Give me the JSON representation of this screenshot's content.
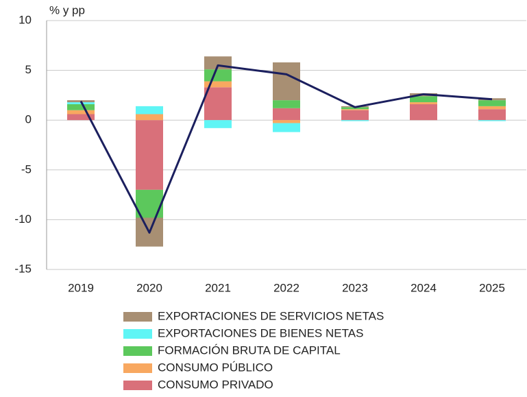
{
  "chart_data": {
    "type": "stacked_bar_line",
    "y_label": "% y pp",
    "categories": [
      "2019",
      "2020",
      "2021",
      "2022",
      "2023",
      "2024",
      "2025"
    ],
    "series": [
      {
        "name": "CONSUMO PRIVADO",
        "color": "#d9707a",
        "values": [
          0.6,
          -7.0,
          3.3,
          1.2,
          1.0,
          1.6,
          1.1
        ]
      },
      {
        "name": "CONSUMO PÚBLICO",
        "color": "#f8a860",
        "values": [
          0.4,
          0.6,
          0.6,
          -0.3,
          0.1,
          0.2,
          0.3
        ]
      },
      {
        "name": "FORMACIÓN BRUTA DE CAPITAL",
        "color": "#5cc85c",
        "values": [
          0.6,
          -2.8,
          1.2,
          0.8,
          0.2,
          0.6,
          0.6
        ]
      },
      {
        "name": "EXPORTACIONES DE BIENES NETAS",
        "color": "#5ff5f5",
        "values": [
          0.2,
          0.8,
          -0.8,
          -0.9,
          -0.1,
          0.0,
          -0.1
        ]
      },
      {
        "name": "EXPORTACIONES DE SERVICIOS NETAS",
        "color": "#a88f73",
        "values": [
          0.2,
          -2.9,
          1.3,
          3.8,
          0.1,
          0.3,
          0.2
        ]
      }
    ],
    "line": {
      "color": "#1b1f5e",
      "values": [
        1.9,
        -11.3,
        5.5,
        4.6,
        1.3,
        2.6,
        2.1
      ]
    },
    "ylim": [
      -15,
      10
    ],
    "yticks": [
      -15,
      -10,
      -5,
      0,
      5,
      10
    ],
    "grid": true,
    "legend": "bottom"
  }
}
